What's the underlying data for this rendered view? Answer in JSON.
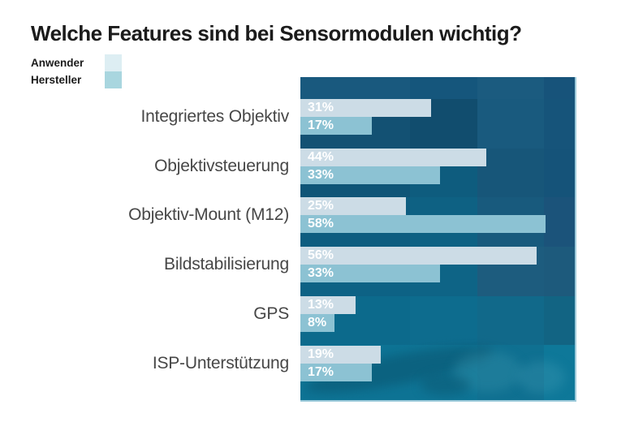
{
  "title": "Welche Features sind bei Sensormodulen wichtig?",
  "legend": {
    "items": [
      {
        "label": "Anwender",
        "swatch_color": "#ddeef3"
      },
      {
        "label": "Hersteller",
        "swatch_color": "#a9d6df"
      }
    ]
  },
  "chart_data": {
    "type": "bar",
    "orientation": "horizontal",
    "title": "Welche Features sind bei Sensormodulen wichtig?",
    "categories": [
      "Integriertes Objektiv",
      "Objektivsteuerung",
      "Objektiv-Mount (M12)",
      "Bildstabilisierung",
      "GPS",
      "ISP-Unterstützung"
    ],
    "series": [
      {
        "name": "Anwender",
        "color": "#ccdce6",
        "values": [
          31,
          44,
          25,
          56,
          13,
          19
        ]
      },
      {
        "name": "Hersteller",
        "color": "#8cc2d3",
        "values": [
          17,
          33,
          58,
          33,
          8,
          17
        ]
      }
    ],
    "value_suffix": "%",
    "value_label_color": "#ffffff",
    "xlim": [
      0,
      65
    ],
    "grid": false,
    "legend_position": "top-left",
    "plot_background": "blue-mosaic-photo"
  },
  "colors": {
    "title_text": "#1b1b1b",
    "category_text": "#474747",
    "plot_base": "#15567b",
    "plot_border_accent": "#9ecbdb"
  }
}
